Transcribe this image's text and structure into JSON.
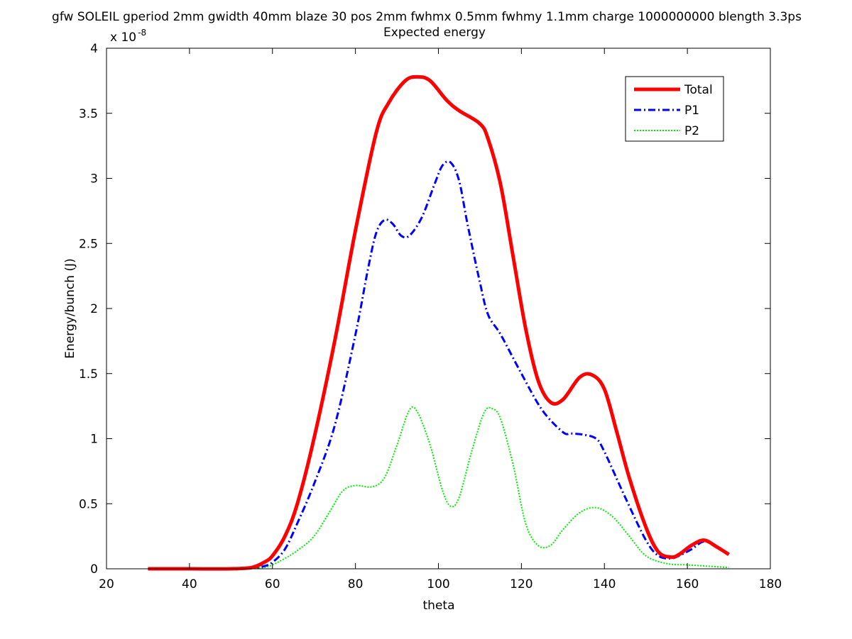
{
  "chart_data": {
    "type": "line",
    "title": "gfw SOLEIL gperiod 2mm gwidth 40mm blaze 30 pos 2mm fwhmx 0.5mm fwhmy 1.1mm charge 1000000000 blength 3.3ps",
    "subtitle": "Expected energy",
    "xlabel": "theta",
    "ylabel": "Energy/bunch (J)",
    "y_multiplier_base": "x 10",
    "y_multiplier_exp": "-8",
    "xlim": [
      20,
      180
    ],
    "ylim": [
      0,
      4
    ],
    "xticks": [
      "20",
      "40",
      "60",
      "80",
      "100",
      "120",
      "140",
      "160",
      "180"
    ],
    "yticks": [
      "0",
      "0.5",
      "1",
      "1.5",
      "2",
      "2.5",
      "3",
      "3.5",
      "4"
    ],
    "grid": false,
    "legend_position": "top-right",
    "series": [
      {
        "name": "Total",
        "color": "#ff0000",
        "style": "solid",
        "x": [
          30,
          40,
          50,
          55,
          58,
          60,
          63,
          66,
          70,
          75,
          80,
          85,
          88,
          92,
          95,
          98,
          102,
          105,
          110,
          112,
          115,
          118,
          121,
          124,
          127,
          130,
          134,
          137,
          140,
          143,
          146,
          150,
          153,
          156,
          158,
          161,
          164,
          167,
          170
        ],
        "y": [
          0,
          0,
          0,
          0.01,
          0.05,
          0.1,
          0.25,
          0.5,
          1.0,
          1.75,
          2.6,
          3.35,
          3.58,
          3.75,
          3.78,
          3.75,
          3.6,
          3.52,
          3.42,
          3.3,
          2.95,
          2.4,
          1.85,
          1.45,
          1.28,
          1.3,
          1.47,
          1.49,
          1.38,
          1.05,
          0.7,
          0.32,
          0.13,
          0.09,
          0.11,
          0.18,
          0.22,
          0.17,
          0.11
        ]
      },
      {
        "name": "P1",
        "color": "#0000ff",
        "style": "dashdot",
        "x": [
          30,
          40,
          50,
          55,
          58,
          60,
          63,
          66,
          70,
          75,
          80,
          83,
          85,
          87,
          89,
          91,
          93,
          96,
          99,
          101,
          103,
          105,
          107,
          110,
          112,
          115,
          120,
          125,
          130,
          132,
          135,
          138,
          140,
          145,
          150,
          153,
          156,
          158,
          161,
          164,
          167,
          170
        ],
        "y": [
          0,
          0,
          0,
          0.005,
          0.02,
          0.05,
          0.15,
          0.35,
          0.65,
          1.1,
          1.8,
          2.3,
          2.58,
          2.68,
          2.65,
          2.56,
          2.56,
          2.7,
          2.95,
          3.1,
          3.12,
          2.98,
          2.65,
          2.2,
          1.95,
          1.8,
          1.5,
          1.22,
          1.05,
          1.04,
          1.03,
          1.0,
          0.9,
          0.55,
          0.22,
          0.1,
          0.08,
          0.1,
          0.15,
          0.21,
          0.17,
          0.11
        ]
      },
      {
        "name": "P2",
        "color": "#00ee00",
        "style": "dotted",
        "x": [
          30,
          40,
          50,
          55,
          58,
          60,
          63,
          66,
          70,
          74,
          77,
          80,
          84,
          87,
          90,
          93,
          95,
          98,
          101,
          103,
          105,
          108,
          111,
          113,
          115,
          118,
          121,
          124,
          127,
          130,
          134,
          138,
          142,
          146,
          150,
          155,
          160,
          165,
          170
        ],
        "y": [
          0,
          0,
          0,
          0.005,
          0.01,
          0.03,
          0.08,
          0.14,
          0.25,
          0.45,
          0.6,
          0.64,
          0.63,
          0.7,
          0.95,
          1.22,
          1.2,
          0.95,
          0.6,
          0.48,
          0.55,
          0.9,
          1.2,
          1.23,
          1.15,
          0.8,
          0.35,
          0.18,
          0.18,
          0.3,
          0.43,
          0.47,
          0.4,
          0.25,
          0.1,
          0.04,
          0.03,
          0.02,
          0.01
        ]
      }
    ]
  }
}
